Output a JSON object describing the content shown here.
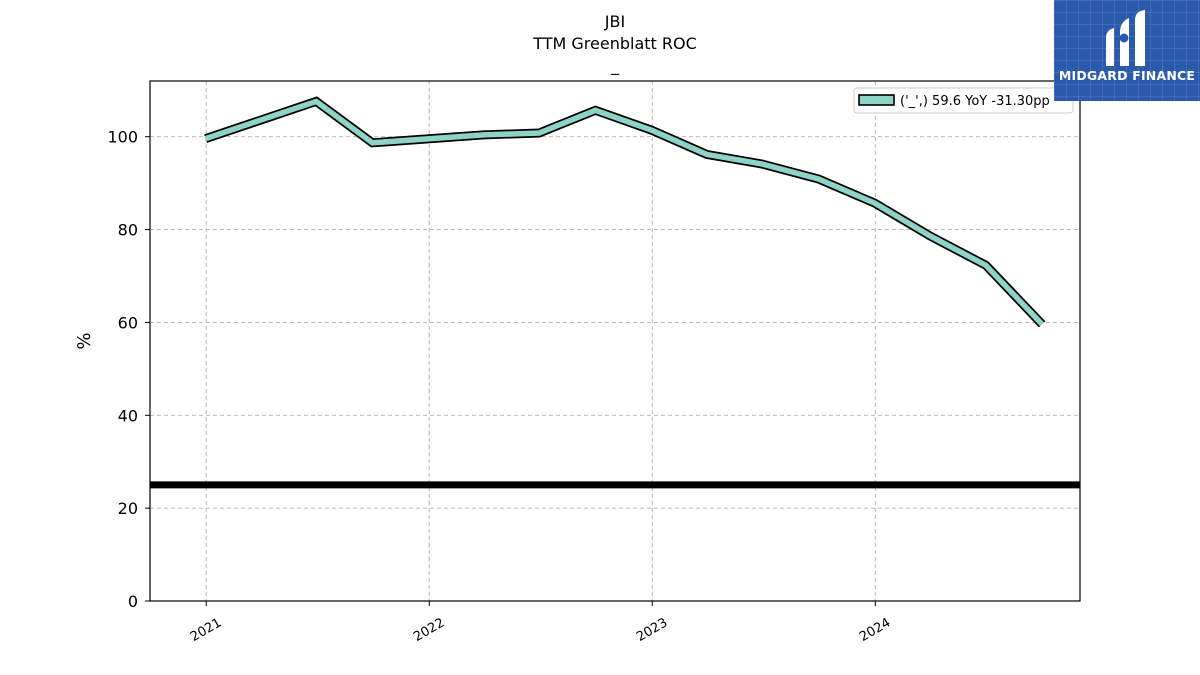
{
  "brand": {
    "name": "MIDGARD FINANCE",
    "color": "#2b5aad"
  },
  "chart_data": {
    "type": "line",
    "title_lines": [
      "JBI",
      "TTM Greenblatt ROC",
      "_"
    ],
    "ylabel": "%",
    "xlabel": "",
    "ylim": [
      0,
      112
    ],
    "yticks": [
      0,
      20,
      40,
      60,
      80,
      100
    ],
    "xticks": [
      {
        "label": "2021",
        "date": "2021-01-01"
      },
      {
        "label": "2022",
        "date": "2022-01-01"
      },
      {
        "label": "2023",
        "date": "2023-01-01"
      },
      {
        "label": "2024",
        "date": "2024-01-01"
      }
    ],
    "xlim": [
      "2020-10-01",
      "2024-12-01"
    ],
    "grid": true,
    "legend_position": "top-right",
    "series": [
      {
        "name": "('_',) 59.6 YoY -31.30pp",
        "color": "#8dd3c7",
        "points": [
          {
            "x": "2020-12-31",
            "y": 99.6
          },
          {
            "x": "2021-06-30",
            "y": 107.6
          },
          {
            "x": "2021-09-30",
            "y": 98.7
          },
          {
            "x": "2022-03-31",
            "y": 100.4
          },
          {
            "x": "2022-06-30",
            "y": 100.8
          },
          {
            "x": "2022-09-30",
            "y": 105.7
          },
          {
            "x": "2022-12-31",
            "y": 101.4
          },
          {
            "x": "2023-03-31",
            "y": 96.2
          },
          {
            "x": "2023-06-30",
            "y": 94.1
          },
          {
            "x": "2023-09-30",
            "y": 90.9
          },
          {
            "x": "2023-12-31",
            "y": 85.7
          },
          {
            "x": "2024-03-31",
            "y": 78.6
          },
          {
            "x": "2024-06-30",
            "y": 72.3
          },
          {
            "x": "2024-09-30",
            "y": 59.6
          }
        ]
      }
    ],
    "reference_line": {
      "y": 25,
      "color": "#000000"
    }
  }
}
